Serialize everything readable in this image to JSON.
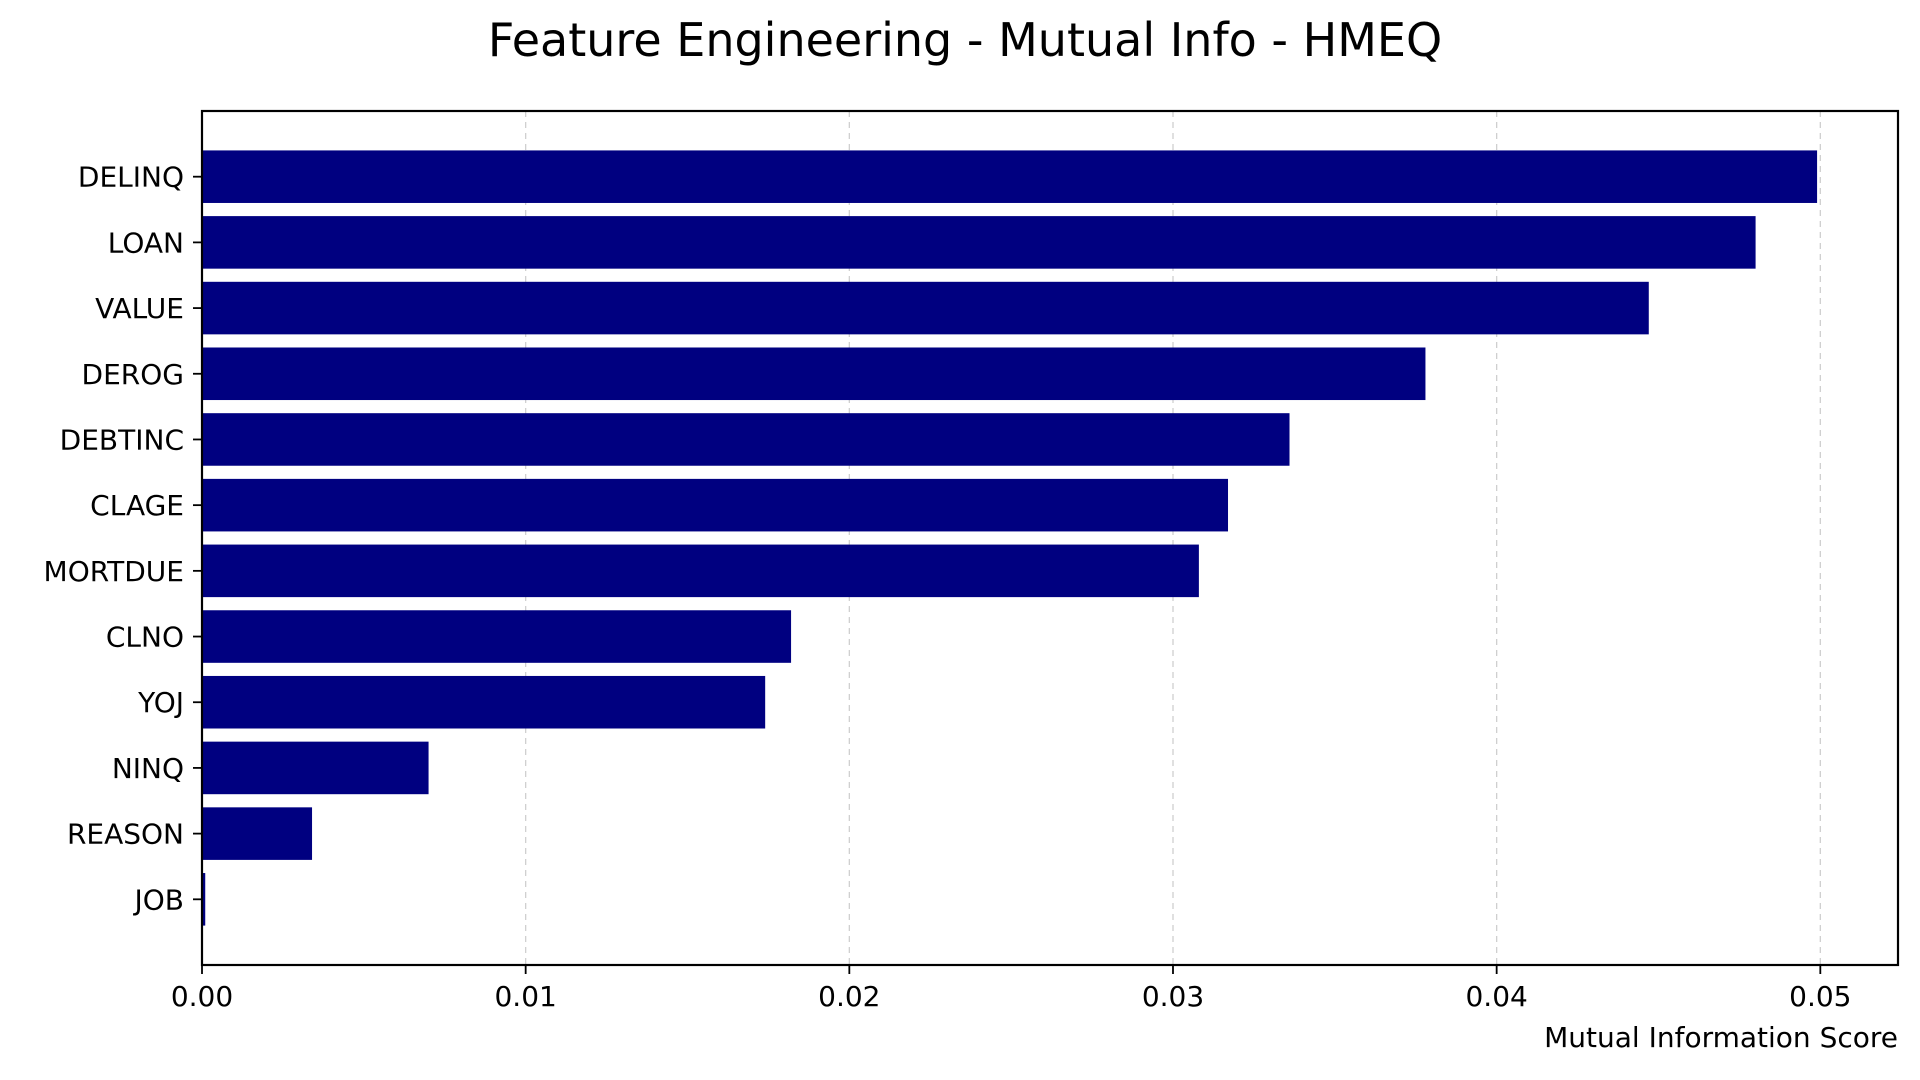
{
  "chart_data": {
    "type": "bar",
    "orientation": "horizontal",
    "title": "Feature Engineering - Mutual Info - HMEQ",
    "xlabel": "Mutual Information Score",
    "ylabel": "",
    "xlim": [
      0,
      0.0524
    ],
    "xticks": [
      0.0,
      0.01,
      0.02,
      0.03,
      0.04,
      0.05
    ],
    "xtick_labels": [
      "0.00",
      "0.01",
      "0.02",
      "0.03",
      "0.04",
      "0.05"
    ],
    "grid": "x-axis dashed",
    "bar_color": "#000080",
    "categories": [
      "DELINQ",
      "LOAN",
      "VALUE",
      "DEROG",
      "DEBTINC",
      "CLAGE",
      "MORTDUE",
      "CLNO",
      "YOJ",
      "NINQ",
      "REASON",
      "JOB"
    ],
    "values": [
      0.0499,
      0.048,
      0.0447,
      0.0378,
      0.0336,
      0.0317,
      0.0308,
      0.0182,
      0.0174,
      0.007,
      0.0034,
      0.0001
    ]
  }
}
